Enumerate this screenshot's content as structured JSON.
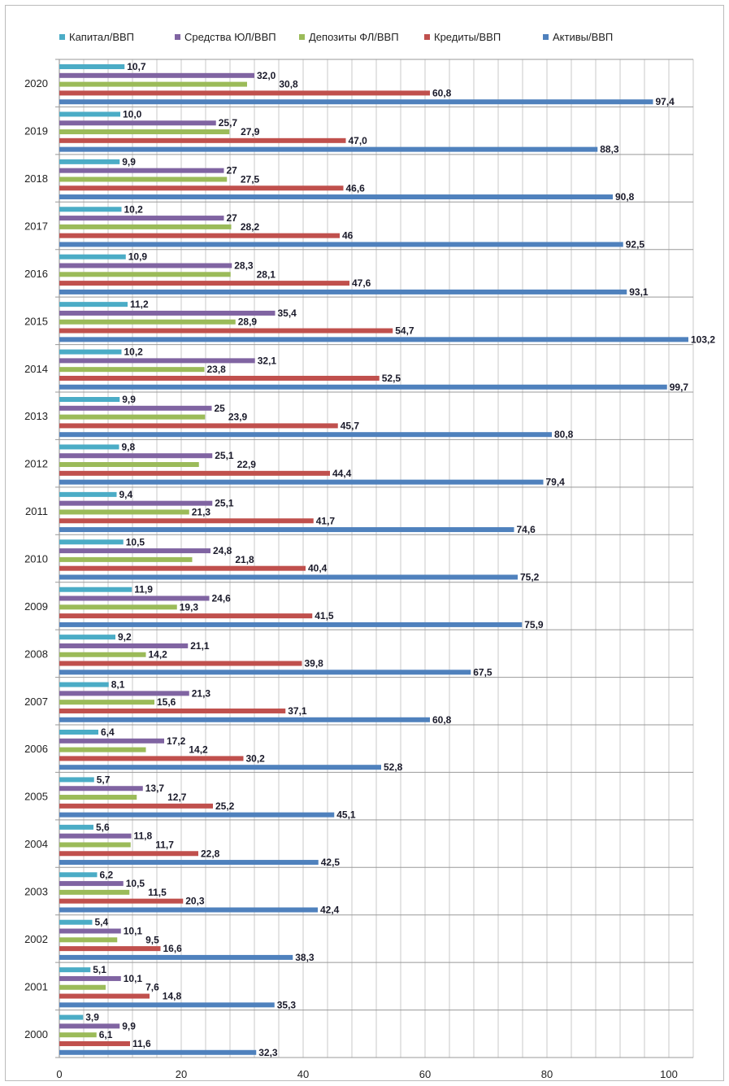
{
  "chart_data": {
    "type": "bar",
    "orientation": "horizontal",
    "title": "",
    "xlabel": "",
    "ylabel": "",
    "xlim": [
      0,
      104
    ],
    "x_ticks": [
      "0",
      "20",
      "40",
      "60",
      "80",
      "100"
    ],
    "grid": true,
    "legend_position": "top",
    "categories": [
      "2020",
      "2019",
      "2018",
      "2017",
      "2016",
      "2015",
      "2014",
      "2013",
      "2012",
      "2011",
      "2010",
      "2009",
      "2008",
      "2007",
      "2006",
      "2005",
      "2004",
      "2003",
      "2002",
      "2001",
      "2000"
    ],
    "series": [
      {
        "name": "Капитал/ВВП",
        "color": "#4bacc6",
        "values": [
          10.7,
          10.0,
          9.9,
          10.2,
          10.9,
          11.2,
          10.2,
          9.9,
          9.8,
          9.4,
          10.5,
          11.9,
          9.2,
          8.1,
          6.4,
          5.7,
          5.6,
          6.2,
          5.4,
          5.1,
          3.9
        ],
        "labels": [
          "10,7",
          "10,0",
          "9,9",
          "10,2",
          "10,9",
          "11,2",
          "10,2",
          "9,9",
          "9,8",
          "9,4",
          "10,5",
          "11,9",
          "9,2",
          "8,1",
          "6,4",
          "5,7",
          "5,6",
          "6,2",
          "5,4",
          "5,1",
          "3,9"
        ]
      },
      {
        "name": "Средства ЮЛ/ВВП",
        "color": "#8064a2",
        "values": [
          32.0,
          25.7,
          27,
          27,
          28.3,
          35.4,
          32.1,
          25,
          25.1,
          25.1,
          24.8,
          24.6,
          21.1,
          21.3,
          17.2,
          13.7,
          11.8,
          10.5,
          10.1,
          10.1,
          9.9
        ],
        "labels": [
          "32,0",
          "25,7",
          "27",
          "27",
          "28,3",
          "35,4",
          "32,1",
          "25",
          "25,1",
          "25,1",
          "24,8",
          "24,6",
          "21,1",
          "21,3",
          "17,2",
          "13,7",
          "11,8",
          "10,5",
          "10,1",
          "10,1",
          "9,9"
        ]
      },
      {
        "name": "Депозиты ФЛ/ВВП",
        "color": "#9bbb59",
        "values": [
          30.8,
          27.9,
          27.5,
          28.2,
          28.1,
          28.9,
          23.8,
          23.9,
          22.9,
          21.3,
          21.8,
          19.3,
          14.2,
          15.6,
          14.2,
          12.7,
          11.7,
          11.5,
          9.5,
          7.6,
          6.1
        ],
        "labels": [
          "30,8",
          "27,9",
          "27,5",
          "28,2",
          "28,1",
          "28,9",
          "23,8",
          "23,9",
          "22,9",
          "21,3",
          "21,8",
          "19,3",
          "14,2",
          "15,6",
          "14,2",
          "12,7",
          "11,7",
          "11,5",
          "9,5",
          "7,6",
          "6,1"
        ]
      },
      {
        "name": "Кредиты/ВВП",
        "color": "#c0504d",
        "values": [
          60.8,
          47.0,
          46.6,
          46,
          47.6,
          54.7,
          52.5,
          45.7,
          44.4,
          41.7,
          40.4,
          41.5,
          39.8,
          37.1,
          30.2,
          25.2,
          22.8,
          20.3,
          16.6,
          14.8,
          11.6
        ],
        "labels": [
          "60,8",
          "47,0",
          "46,6",
          "46",
          "47,6",
          "54,7",
          "52,5",
          "45,7",
          "44,4",
          "41,7",
          "40,4",
          "41,5",
          "39,8",
          "37,1",
          "30,2",
          "25,2",
          "22,8",
          "20,3",
          "16,6",
          "14,8",
          "11,6"
        ]
      },
      {
        "name": "Активы/ВВП",
        "color": "#4f81bd",
        "values": [
          97.4,
          88.3,
          90.8,
          92.5,
          93.1,
          103.2,
          99.7,
          80.8,
          79.4,
          74.6,
          75.2,
          75.9,
          67.5,
          60.8,
          52.8,
          45.1,
          42.5,
          42.4,
          38.3,
          35.3,
          32.3
        ],
        "labels": [
          "97,4",
          "88,3",
          "90,8",
          "92,5",
          "93,1",
          "103,2",
          "99,7",
          "80,8",
          "79,4",
          "74,6",
          "75,2",
          "75,9",
          "67,5",
          "60,8",
          "52,8",
          "45,1",
          "42,5",
          "42,4",
          "38,3",
          "35,3",
          "32,3"
        ]
      }
    ]
  }
}
